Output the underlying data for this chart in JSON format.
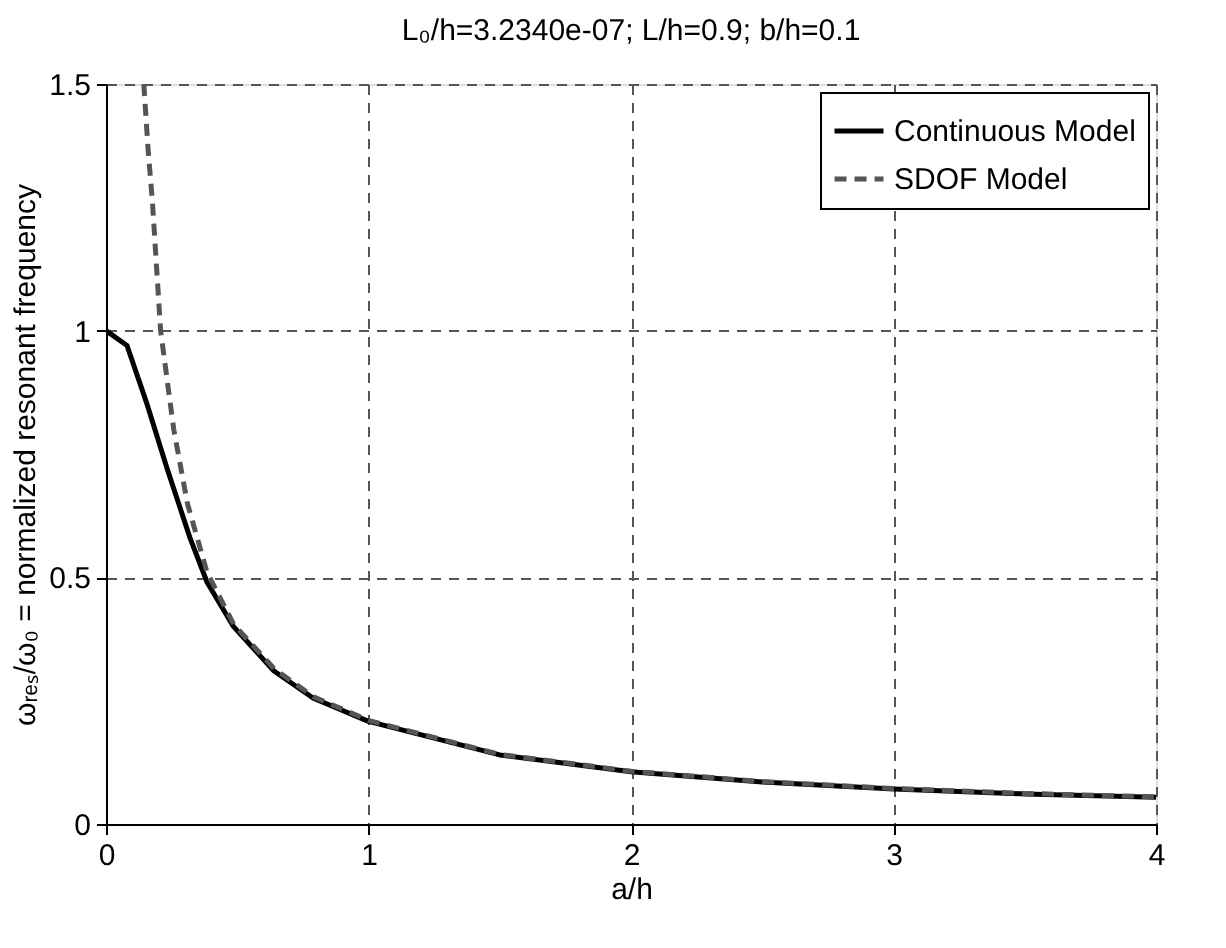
{
  "chart_data": {
    "type": "line",
    "title": "L₀/h=3.2340e-07; L/h=0.9; b/h=0.1",
    "xlabel": "a/h",
    "ylabel": "ωᵣₑₛ/ω₀ = normalized resonant frequency",
    "xlim": [
      0,
      4
    ],
    "ylim": [
      0,
      1.5
    ],
    "xticks": [
      0,
      1,
      2,
      3,
      4
    ],
    "yticks": [
      0,
      0.5,
      1,
      1.5
    ],
    "grid": true,
    "legend": "top right",
    "series": [
      {
        "name": "Continuous Model",
        "color": "#000000",
        "line_style": "solid",
        "x": [
          0,
          0.08,
          0.157,
          0.233,
          0.32,
          0.385,
          0.486,
          0.64,
          0.79,
          1,
          1.5,
          2,
          2.5,
          3,
          3.5,
          4
        ],
        "values": [
          1,
          0.97,
          0.85,
          0.72,
          0.58,
          0.49,
          0.4,
          0.31,
          0.255,
          0.208,
          0.14,
          0.106,
          0.085,
          0.071,
          0.061,
          0.054
        ]
      },
      {
        "name": "SDOF Model",
        "color": "#555555",
        "line_style": "dashed",
        "x": [
          0.144,
          0.16,
          0.177,
          0.208,
          0.258,
          0.31,
          0.385,
          0.486,
          0.64,
          0.79,
          1,
          1.5,
          2,
          2.5,
          3,
          3.5,
          4
        ],
        "values": [
          1.5,
          1.37,
          1.26,
          1.0,
          0.8,
          0.65,
          0.51,
          0.405,
          0.315,
          0.258,
          0.21,
          0.141,
          0.107,
          0.086,
          0.072,
          0.062,
          0.055
        ]
      }
    ]
  }
}
